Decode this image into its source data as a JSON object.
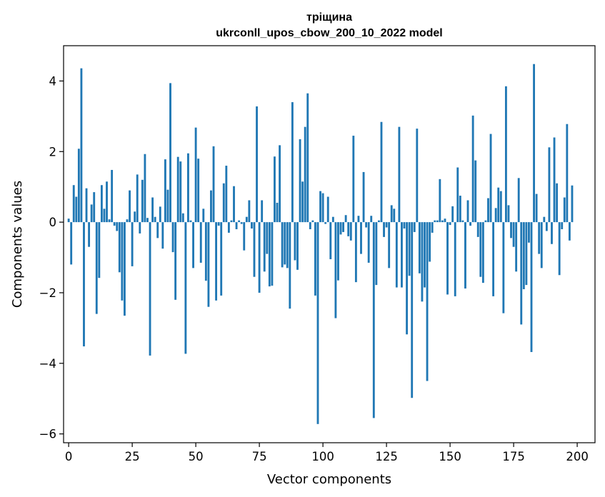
{
  "chart_data": {
    "type": "bar",
    "title": "тріщина",
    "subtitle": "ukrconll_upos_cbow_200_10_2022 model",
    "xlabel": "Vector components",
    "ylabel": "Components values",
    "xlim": [
      -2,
      207
    ],
    "ylim": [
      -6.25,
      5.0
    ],
    "xticks": [
      0,
      25,
      50,
      75,
      100,
      125,
      150,
      175,
      200
    ],
    "yticks": [
      -6,
      -4,
      -2,
      0,
      2,
      4
    ],
    "ytick_labels": [
      "−6",
      "−4",
      "−2",
      "0",
      "2",
      "4"
    ],
    "grid": false,
    "bar_color": "#1f77b4",
    "series": [
      {
        "values": [
          0.1,
          -1.2,
          1.05,
          0.72,
          2.08,
          4.36,
          -3.52,
          0.96,
          -0.7,
          0.5,
          0.85,
          -2.6,
          -1.58,
          1.05,
          0.38,
          1.15,
          0.08,
          1.48,
          -0.1,
          -0.25,
          -1.42,
          -2.22,
          -2.65,
          0.08,
          0.9,
          -1.25,
          0.3,
          1.35,
          -0.32,
          1.2,
          1.93,
          0.12,
          -3.78,
          0.7,
          0.15,
          -0.45,
          0.44,
          -0.75,
          1.78,
          0.92,
          3.94,
          -0.85,
          -2.2,
          1.85,
          1.72,
          0.25,
          -3.73,
          1.95,
          0.05,
          -1.3,
          2.68,
          1.8,
          -1.15,
          0.38,
          -1.66,
          -2.4,
          0.9,
          2.15,
          -2.22,
          -0.1,
          -2.08,
          1.1,
          1.6,
          -0.3,
          0.05,
          1.02,
          -0.2,
          0.05,
          -0.05,
          -0.8,
          0.15,
          0.62,
          -0.18,
          -1.55,
          3.28,
          -2.0,
          0.62,
          -1.4,
          -0.9,
          -1.82,
          -1.8,
          1.86,
          0.55,
          2.18,
          -1.28,
          -1.2,
          -1.3,
          -2.45,
          3.4,
          -1.08,
          -1.35,
          2.35,
          1.15,
          2.7,
          3.65,
          -0.2,
          0.05,
          -2.08,
          -5.72,
          0.88,
          0.82,
          -0.05,
          0.72,
          -1.05,
          0.15,
          -2.72,
          -1.65,
          -0.35,
          -0.28,
          0.2,
          -0.4,
          -0.52,
          2.45,
          -1.7,
          0.18,
          -0.9,
          1.42,
          -0.15,
          -1.15,
          0.18,
          -5.55,
          -1.78,
          0.05,
          2.84,
          -0.42,
          -0.15,
          -1.3,
          0.48,
          0.38,
          -1.85,
          2.7,
          -1.85,
          -0.18,
          -3.18,
          -1.52,
          -4.98,
          -0.28,
          2.65,
          -1.45,
          -2.25,
          -1.85,
          -4.5,
          -1.12,
          -0.3,
          0.05,
          0.05,
          1.22,
          0.05,
          0.1,
          -2.05,
          -0.08,
          0.45,
          -2.1,
          1.55,
          0.75,
          0.05,
          -1.88,
          0.62,
          -0.1,
          3.02,
          1.75,
          -0.42,
          -1.55,
          -1.72,
          0.05,
          0.68,
          2.5,
          -2.1,
          0.4,
          0.98,
          0.88,
          -2.58,
          3.85,
          0.48,
          -0.45,
          -0.7,
          -1.4,
          1.25,
          -2.9,
          -1.9,
          -1.78,
          -0.58,
          -3.68,
          4.48,
          0.8,
          -0.9,
          -1.3,
          0.15,
          -0.25,
          2.12,
          -0.62,
          2.4,
          1.1,
          -1.5,
          -0.2,
          0.7,
          2.78,
          -0.52,
          1.04
        ]
      }
    ]
  }
}
